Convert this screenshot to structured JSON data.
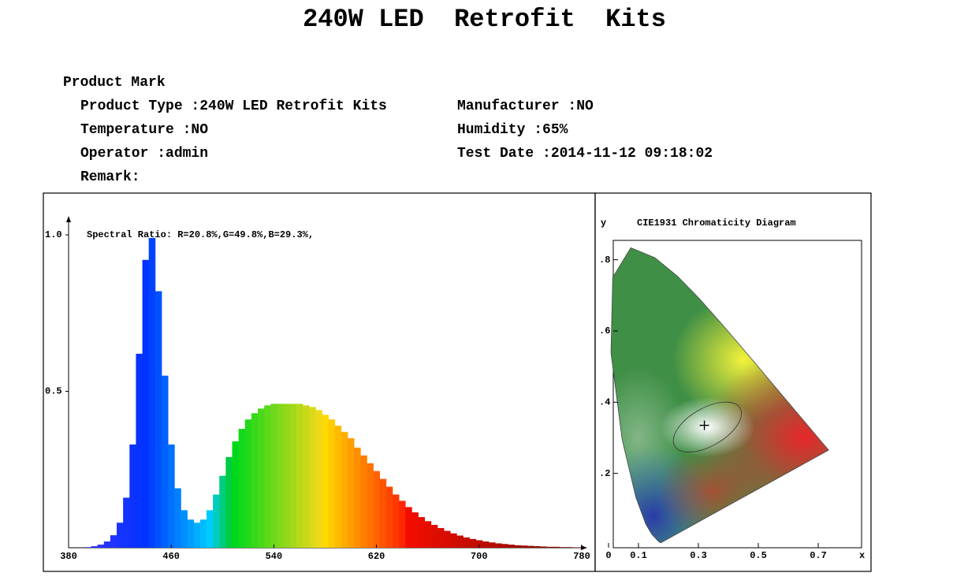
{
  "title": "240W LED  Retrofit  Kits",
  "product_mark": "Product Mark",
  "fields": [
    "Product Type :240W LED Retrofit Kits",
    "Manufacturer :NO",
    "Temperature :NO",
    "Humidity :65%",
    "Operator :admin",
    "Test Date :2014-11-12 09:18:02",
    "Remark:"
  ],
  "chart_data": [
    {
      "type": "spectrum",
      "annotation": "Spectral Ratio:  R=20.8%,G=49.8%,B=29.3%,",
      "x": [
        380,
        385,
        390,
        395,
        400,
        405,
        410,
        415,
        420,
        425,
        430,
        435,
        440,
        445,
        450,
        455,
        460,
        465,
        470,
        475,
        480,
        485,
        490,
        495,
        500,
        505,
        510,
        515,
        520,
        525,
        530,
        535,
        540,
        545,
        550,
        555,
        560,
        565,
        570,
        575,
        580,
        585,
        590,
        595,
        600,
        605,
        610,
        615,
        620,
        625,
        630,
        635,
        640,
        645,
        650,
        655,
        660,
        665,
        670,
        675,
        680,
        685,
        690,
        695,
        700,
        705,
        710,
        715,
        720,
        725,
        730,
        735,
        740,
        745,
        750,
        755,
        760,
        765,
        770,
        775,
        780
      ],
      "values": [
        0,
        0,
        0,
        0.002,
        0.005,
        0.01,
        0.02,
        0.04,
        0.08,
        0.16,
        0.33,
        0.62,
        0.92,
        0.99,
        0.82,
        0.55,
        0.33,
        0.19,
        0.12,
        0.09,
        0.08,
        0.09,
        0.12,
        0.17,
        0.23,
        0.29,
        0.34,
        0.38,
        0.41,
        0.43,
        0.445,
        0.455,
        0.46,
        0.46,
        0.46,
        0.46,
        0.46,
        0.455,
        0.45,
        0.44,
        0.425,
        0.41,
        0.39,
        0.37,
        0.35,
        0.32,
        0.295,
        0.27,
        0.245,
        0.22,
        0.195,
        0.17,
        0.15,
        0.13,
        0.113,
        0.098,
        0.085,
        0.073,
        0.063,
        0.054,
        0.046,
        0.039,
        0.033,
        0.028,
        0.024,
        0.02,
        0.017,
        0.014,
        0.012,
        0.01,
        0.008,
        0.007,
        0.006,
        0.005,
        0.004,
        0.003,
        0.003,
        0.002,
        0.002,
        0.001,
        0.001
      ],
      "xlim": [
        380,
        780
      ],
      "xticks": [
        380,
        460,
        540,
        620,
        700,
        780
      ],
      "ylim": [
        0,
        1
      ],
      "yticks": [
        {
          "value": 1,
          "label": "1.0"
        },
        0.5
      ]
    },
    {
      "type": "chromaticity",
      "title": "CIE1931 Chromaticity Diagram",
      "xlabel": "x",
      "ylabel": "y",
      "xlim": [
        0,
        0.85
      ],
      "xticks": [
        0,
        0.1,
        0.3,
        0.5,
        0.7
      ],
      "ylim": [
        0,
        0.85
      ],
      "yticks": [
        {
          "value": 0.8,
          "label": ".8"
        },
        {
          "value": 0.6,
          "label": ".6"
        },
        {
          "value": 0.4,
          "label": ".4"
        },
        {
          "value": 0.2,
          "label": ".2"
        }
      ],
      "point": {
        "x": 0.32,
        "y": 0.335
      }
    }
  ]
}
